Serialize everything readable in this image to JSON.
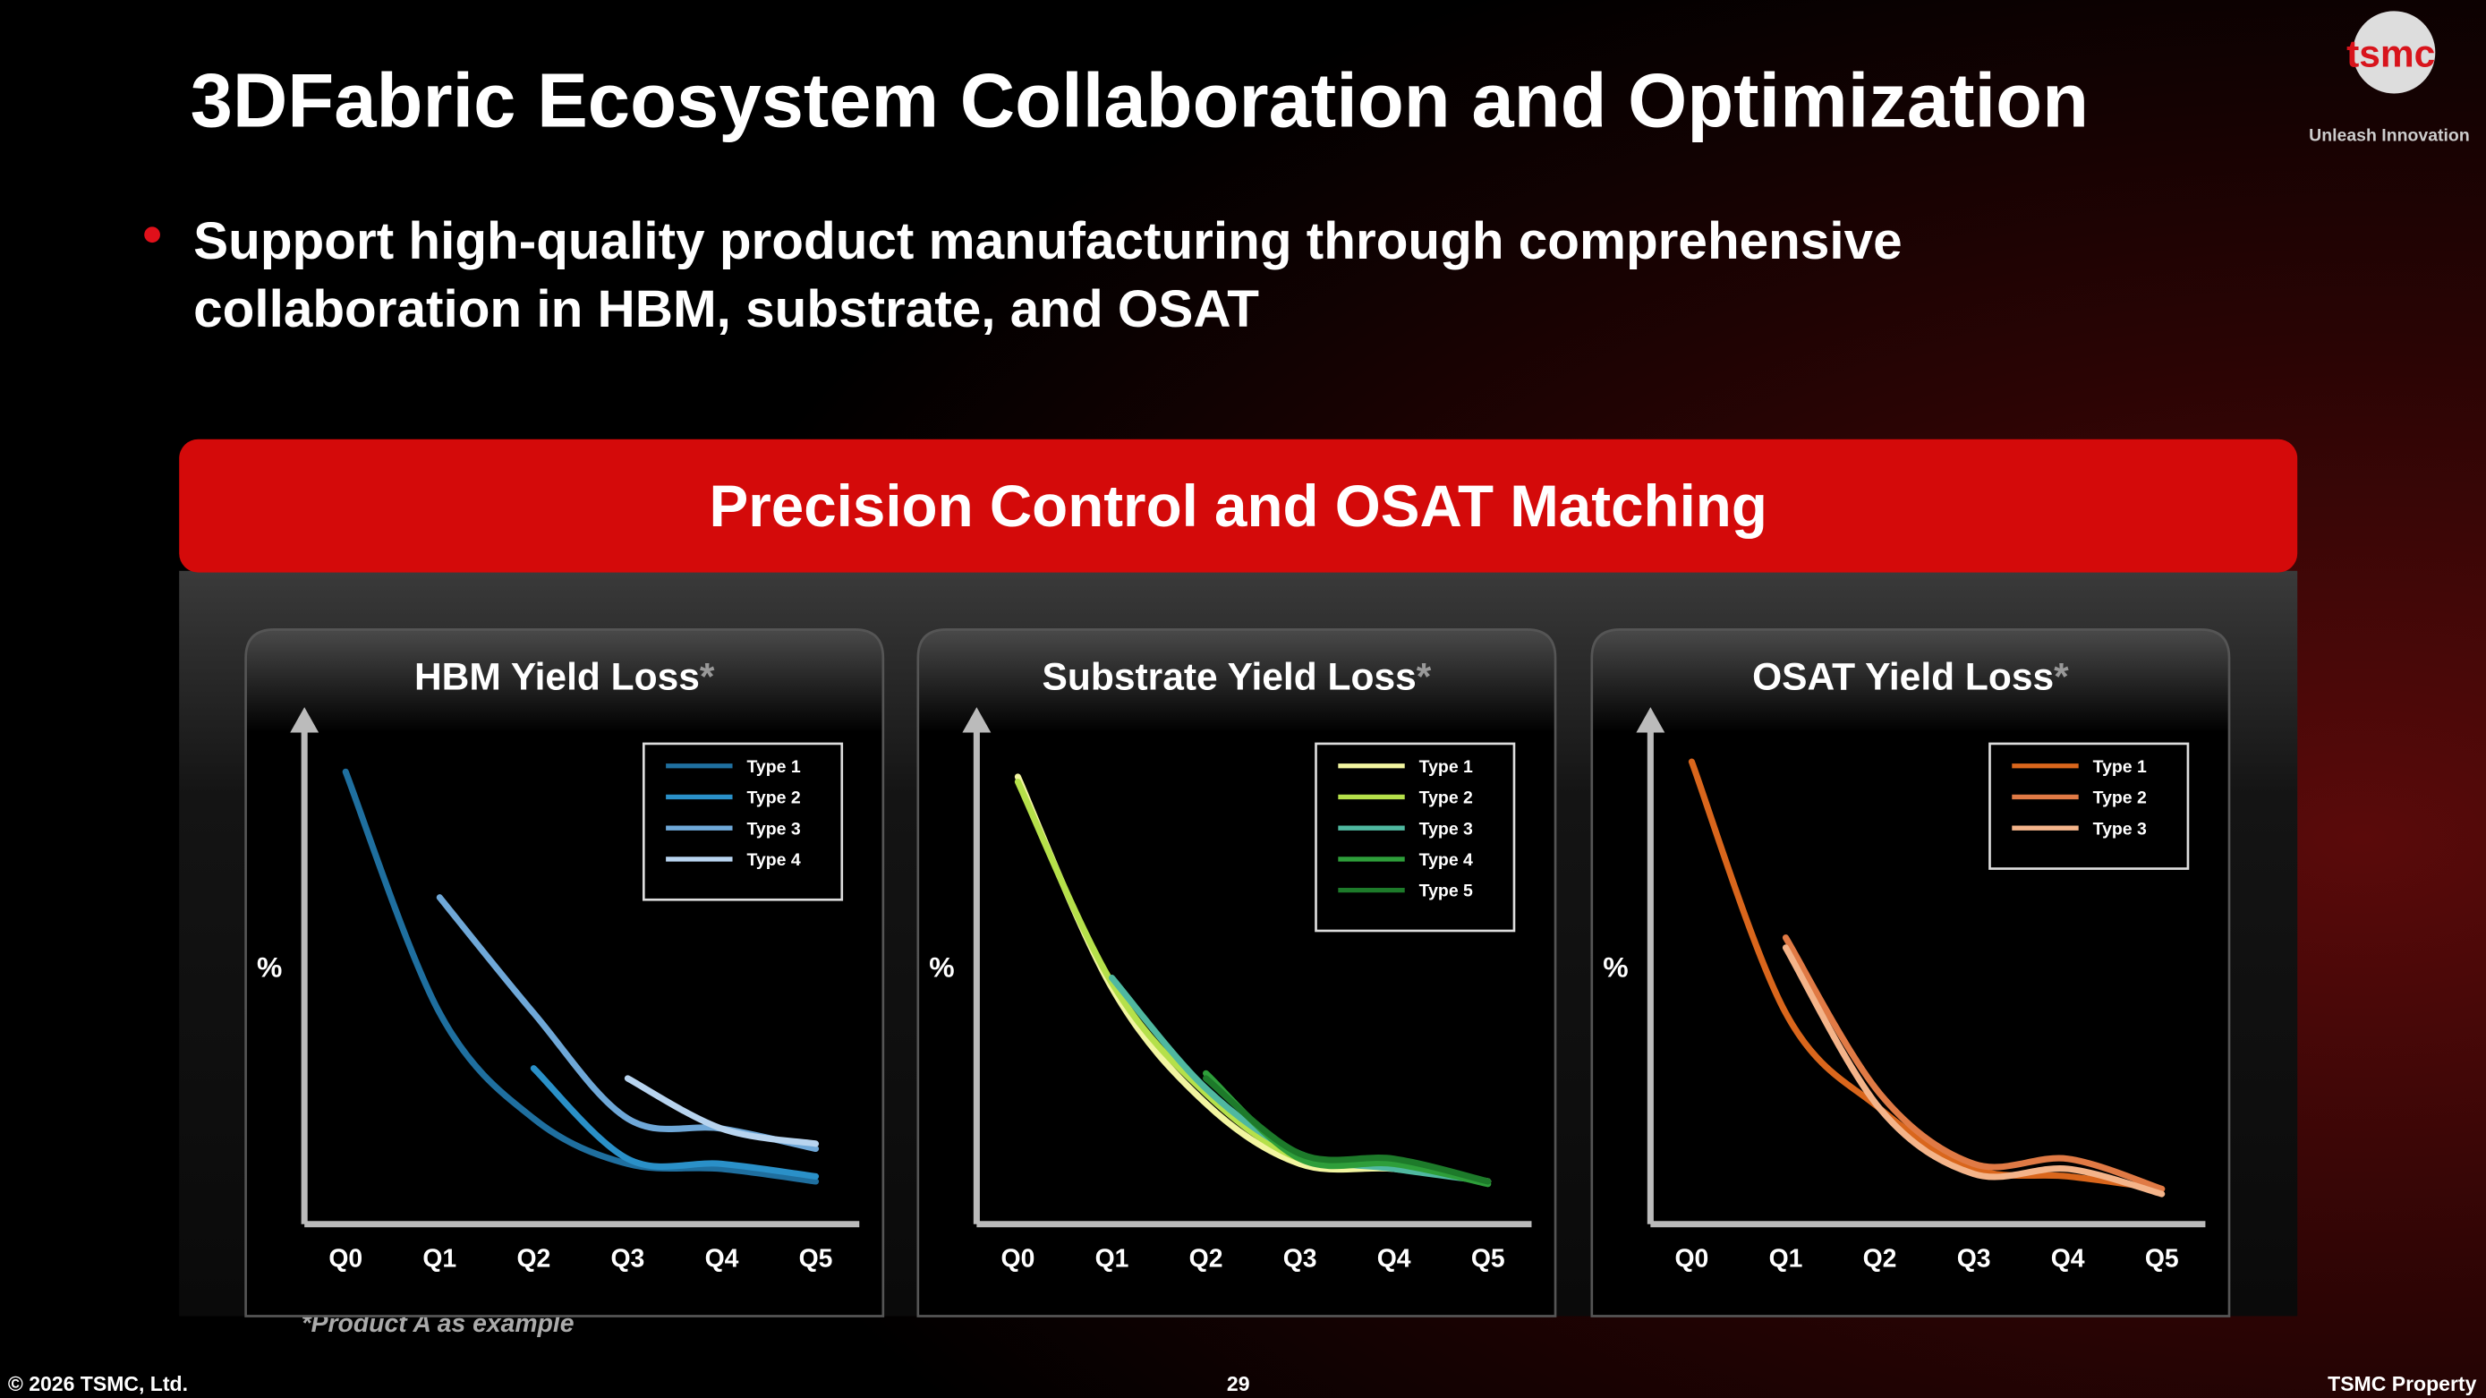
{
  "title": "3DFabric Ecosystem Collaboration and Optimization",
  "logo": "tsmc",
  "logo_tagline": "Unleash Innovation",
  "bullet": [
    "Support high-quality product manufacturing through comprehensive",
    "collaboration in HBM, substrate, and OSAT"
  ],
  "banner": "Precision Control and OSAT Matching",
  "footnote": "*Product A as example",
  "footer_left": "© 2026 TSMC, Ltd.",
  "page_number": "29",
  "footer_right": "TSMC Property",
  "chart_data": [
    {
      "type": "line",
      "title": "HBM Yield Loss",
      "title_mark": "*",
      "ylabel": "%",
      "categories": [
        "Q0",
        "Q1",
        "Q2",
        "Q3",
        "Q4",
        "Q5"
      ],
      "ylim": [
        0,
        100
      ],
      "series": [
        {
          "name": "Type 1",
          "color": "#1f6f9f",
          "values": [
            90,
            42,
            21,
            12,
            11,
            8.5
          ]
        },
        {
          "name": "Type 2",
          "color": "#2a90c8",
          "values": [
            null,
            null,
            31,
            13,
            12,
            9.5
          ]
        },
        {
          "name": "Type 3",
          "color": "#6fa8d8",
          "values": [
            null,
            65,
            42,
            21,
            19,
            15
          ]
        },
        {
          "name": "Type 4",
          "color": "#b8d4ef",
          "values": [
            null,
            null,
            null,
            29,
            19,
            16
          ]
        }
      ]
    },
    {
      "type": "line",
      "title": "Substrate Yield Loss",
      "title_mark": "*",
      "ylabel": "%",
      "categories": [
        "Q0",
        "Q1",
        "Q2",
        "Q3",
        "Q4",
        "Q5"
      ],
      "ylim": [
        0,
        100
      ],
      "series": [
        {
          "name": "Type 1",
          "color": "#f2f5a0",
          "values": [
            89,
            47,
            24,
            12,
            11,
            8.5
          ]
        },
        {
          "name": "Type 2",
          "color": "#b5e04a",
          "values": [
            88,
            48,
            26,
            13,
            12,
            8.5
          ]
        },
        {
          "name": "Type 3",
          "color": "#4fb8a0",
          "values": [
            null,
            49,
            27,
            14,
            11,
            8.5
          ]
        },
        {
          "name": "Type 4",
          "color": "#2e9e3a",
          "values": [
            null,
            null,
            30,
            13,
            12,
            8
          ]
        },
        {
          "name": "Type 5",
          "color": "#1d7a2a",
          "values": [
            null,
            null,
            29,
            14,
            13,
            8.5
          ]
        }
      ]
    },
    {
      "type": "line",
      "title": "OSAT Yield Loss",
      "title_mark": "*",
      "ylabel": "%",
      "categories": [
        "Q0",
        "Q1",
        "Q2",
        "Q3",
        "Q4",
        "Q5"
      ],
      "ylim": [
        0,
        100
      ],
      "series": [
        {
          "name": "Type 1",
          "color": "#d9661c",
          "values": [
            92,
            42,
            23,
            11,
            9.5,
            7
          ]
        },
        {
          "name": "Type 2",
          "color": "#e07a45",
          "values": [
            null,
            57,
            26,
            12,
            13,
            7
          ]
        },
        {
          "name": "Type 3",
          "color": "#f4b48a",
          "values": [
            null,
            55,
            23,
            10,
            11,
            6
          ]
        }
      ]
    }
  ]
}
